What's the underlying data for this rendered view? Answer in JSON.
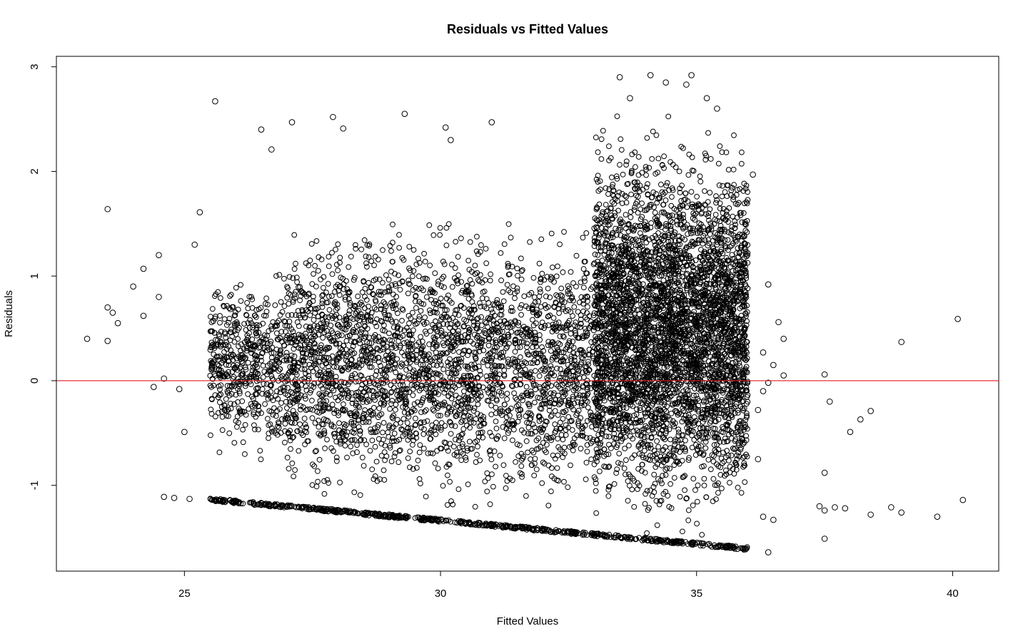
{
  "chart_data": {
    "type": "scatter",
    "title": "Residuals vs Fitted Values",
    "xlabel": "Fitted Values",
    "ylabel": "Residuals",
    "xlim": [
      22.5,
      40.9
    ],
    "ylim": [
      -1.82,
      3.1
    ],
    "x_ticks": [
      25,
      30,
      35,
      40
    ],
    "y_ticks": [
      -1,
      0,
      1,
      2,
      3
    ],
    "reference_line": {
      "y": 0,
      "color": "#e31a1c"
    },
    "marker": "open-circle",
    "grid": false,
    "legend": "none",
    "lower_bound_line": {
      "x": [
        25.5,
        36.0
      ],
      "y": [
        -1.15,
        -1.62
      ]
    },
    "density_regions": [
      {
        "x": [
          27.0,
          33.0
        ],
        "y": [
          -1.4,
          1.7
        ],
        "weight": 0.32
      },
      {
        "x": [
          33.0,
          36.0
        ],
        "y": [
          -1.6,
          2.6
        ],
        "weight": 0.48
      },
      {
        "x": [
          25.5,
          27.0
        ],
        "y": [
          -0.9,
          1.2
        ],
        "weight": 0.06
      }
    ],
    "points": [
      {
        "x": 23.1,
        "y": 0.4
      },
      {
        "x": 23.5,
        "y": 1.64
      },
      {
        "x": 23.5,
        "y": 0.7
      },
      {
        "x": 23.6,
        "y": 0.65
      },
      {
        "x": 23.5,
        "y": 0.38
      },
      {
        "x": 23.7,
        "y": 0.55
      },
      {
        "x": 24.0,
        "y": 0.9
      },
      {
        "x": 24.2,
        "y": 1.07
      },
      {
        "x": 24.2,
        "y": 0.62
      },
      {
        "x": 24.5,
        "y": 0.8
      },
      {
        "x": 24.4,
        "y": -0.06
      },
      {
        "x": 24.6,
        "y": 0.02
      },
      {
        "x": 24.5,
        "y": 1.2
      },
      {
        "x": 24.9,
        "y": -0.08
      },
      {
        "x": 25.0,
        "y": -0.49
      },
      {
        "x": 25.2,
        "y": 1.3
      },
      {
        "x": 25.3,
        "y": 1.61
      },
      {
        "x": 25.6,
        "y": 2.67
      },
      {
        "x": 24.6,
        "y": -1.11
      },
      {
        "x": 24.8,
        "y": -1.12
      },
      {
        "x": 25.1,
        "y": -1.13
      },
      {
        "x": 26.5,
        "y": 2.4
      },
      {
        "x": 26.7,
        "y": 2.21
      },
      {
        "x": 27.1,
        "y": 2.47
      },
      {
        "x": 27.9,
        "y": 2.52
      },
      {
        "x": 28.1,
        "y": 2.41
      },
      {
        "x": 29.3,
        "y": 2.55
      },
      {
        "x": 30.1,
        "y": 2.42
      },
      {
        "x": 30.2,
        "y": 2.3
      },
      {
        "x": 31.0,
        "y": 2.47
      },
      {
        "x": 33.5,
        "y": 2.9
      },
      {
        "x": 33.7,
        "y": 2.7
      },
      {
        "x": 34.1,
        "y": 2.92
      },
      {
        "x": 34.4,
        "y": 2.85
      },
      {
        "x": 34.8,
        "y": 2.83
      },
      {
        "x": 34.9,
        "y": 2.92
      },
      {
        "x": 35.2,
        "y": 2.7
      },
      {
        "x": 35.4,
        "y": 2.6
      },
      {
        "x": 36.1,
        "y": 1.97
      },
      {
        "x": 36.4,
        "y": 0.92
      },
      {
        "x": 36.6,
        "y": 0.56
      },
      {
        "x": 36.7,
        "y": 0.4
      },
      {
        "x": 36.7,
        "y": 0.05
      },
      {
        "x": 36.5,
        "y": 0.15
      },
      {
        "x": 36.3,
        "y": 0.27
      },
      {
        "x": 36.4,
        "y": -0.02
      },
      {
        "x": 36.3,
        "y": -0.1
      },
      {
        "x": 36.2,
        "y": -0.28
      },
      {
        "x": 36.2,
        "y": -0.75
      },
      {
        "x": 36.3,
        "y": -1.3
      },
      {
        "x": 36.5,
        "y": -1.33
      },
      {
        "x": 36.4,
        "y": -1.64
      },
      {
        "x": 37.5,
        "y": 0.06
      },
      {
        "x": 37.6,
        "y": -0.2
      },
      {
        "x": 37.5,
        "y": -0.88
      },
      {
        "x": 37.4,
        "y": -1.2
      },
      {
        "x": 37.5,
        "y": -1.24
      },
      {
        "x": 37.7,
        "y": -1.21
      },
      {
        "x": 37.9,
        "y": -1.22
      },
      {
        "x": 37.5,
        "y": -1.51
      },
      {
        "x": 38.0,
        "y": -0.49
      },
      {
        "x": 38.2,
        "y": -0.37
      },
      {
        "x": 38.4,
        "y": -0.29
      },
      {
        "x": 38.4,
        "y": -1.28
      },
      {
        "x": 38.8,
        "y": -1.21
      },
      {
        "x": 39.0,
        "y": -1.26
      },
      {
        "x": 39.0,
        "y": 0.37
      },
      {
        "x": 39.7,
        "y": -1.3
      },
      {
        "x": 40.1,
        "y": 0.59
      },
      {
        "x": 40.2,
        "y": -1.14
      }
    ]
  }
}
